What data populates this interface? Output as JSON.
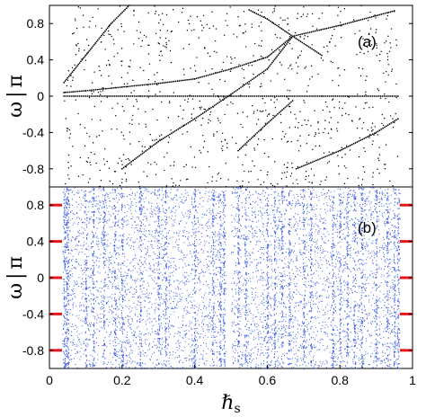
{
  "chart_data": [
    {
      "panel_label": "(a)",
      "type": "scatter",
      "marker_color": "#000000",
      "ylabel_parts": [
        "ω",
        "|",
        "π"
      ],
      "ylim": [
        -1,
        1
      ],
      "yticks": [
        0.8,
        0.4,
        0,
        -0.4,
        -0.8
      ],
      "ytick_labels": [
        "0.8",
        "0.4",
        "0",
        "-0.4",
        "-0.8"
      ],
      "xlim": [
        0,
        1
      ],
      "grid": false,
      "series": [
        {
          "values": [
            [
              0.04,
              0.04
            ],
            [
              0.1,
              0.06
            ],
            [
              0.2,
              0.1
            ],
            [
              0.3,
              0.14
            ],
            [
              0.4,
              0.19
            ],
            [
              0.5,
              0.3
            ],
            [
              0.6,
              0.43
            ],
            [
              0.67,
              0.66
            ],
            [
              0.8,
              0.78
            ],
            [
              0.95,
              0.94
            ]
          ]
        },
        {
          "values": [
            [
              0.04,
              0.0
            ],
            [
              0.25,
              0.0
            ],
            [
              0.5,
              0.0
            ],
            [
              0.75,
              0.0
            ],
            [
              0.96,
              0.0
            ]
          ]
        },
        {
          "values": [
            [
              0.04,
              0.15
            ],
            [
              0.1,
              0.45
            ],
            [
              0.17,
              0.8
            ],
            [
              0.22,
              1.0
            ]
          ]
        },
        {
          "values": [
            [
              0.2,
              -0.8
            ],
            [
              0.3,
              -0.5
            ],
            [
              0.4,
              -0.25
            ],
            [
              0.5,
              0.02
            ],
            [
              0.6,
              0.3
            ],
            [
              0.67,
              0.66
            ]
          ]
        },
        {
          "values": [
            [
              0.55,
              0.95
            ],
            [
              0.6,
              0.85
            ],
            [
              0.67,
              0.66
            ],
            [
              0.75,
              0.45
            ]
          ]
        },
        {
          "values": [
            [
              0.68,
              -0.8
            ],
            [
              0.8,
              -0.6
            ],
            [
              0.9,
              -0.4
            ],
            [
              0.96,
              -0.25
            ]
          ]
        },
        {
          "values": [
            [
              0.52,
              -0.6
            ],
            [
              0.6,
              -0.3
            ],
            [
              0.67,
              -0.05
            ]
          ]
        }
      ]
    },
    {
      "panel_label": "(b)",
      "type": "scatter",
      "marker_color": "#3b5de7",
      "reference_marker_color": "#e8161b",
      "reference_levels": [
        0.8,
        0.4,
        0,
        -0.4,
        -0.8
      ],
      "ylabel_parts": [
        "ω",
        "|",
        "π"
      ],
      "ylim": [
        -1,
        1
      ],
      "yticks": [
        0.8,
        0.4,
        0,
        -0.4,
        -0.8
      ],
      "ytick_labels": [
        "0.8",
        "0.4",
        "0",
        "-0.4",
        "-0.8"
      ],
      "xlim": [
        0,
        1
      ],
      "xticks": [
        0,
        0.2,
        0.4,
        0.6,
        0.8,
        1
      ],
      "xtick_labels": [
        "0",
        "0.2",
        "0.4",
        "0.6",
        "0.8",
        "1"
      ],
      "xlabel_main": "ℏ",
      "xlabel_sub": "s",
      "grid": false,
      "band_columns_x": [
        0.04,
        0.045,
        0.05,
        0.1,
        0.12,
        0.15,
        0.18,
        0.2,
        0.25,
        0.3,
        0.32,
        0.4,
        0.45,
        0.47,
        0.48,
        0.52,
        0.54,
        0.6,
        0.62,
        0.64,
        0.66,
        0.7,
        0.72,
        0.78,
        0.8,
        0.82,
        0.84,
        0.86,
        0.9,
        0.93,
        0.95,
        0.96
      ]
    }
  ]
}
